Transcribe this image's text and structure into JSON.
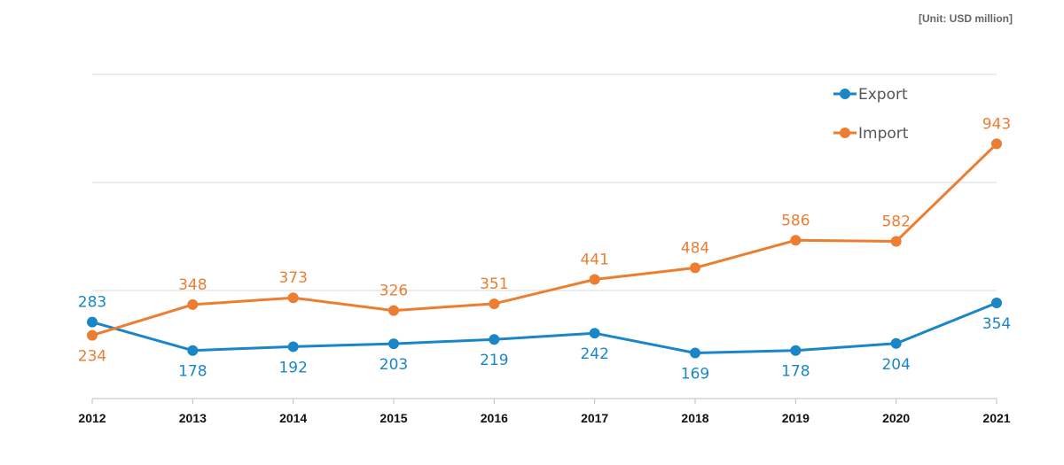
{
  "unit_note": "[Unit: USD million]",
  "chart_data": {
    "type": "line",
    "x": [
      "2012",
      "2013",
      "2014",
      "2015",
      "2016",
      "2017",
      "2018",
      "2019",
      "2020",
      "2021"
    ],
    "series": [
      {
        "name": "Export",
        "color": "#1a86c8",
        "values": [
          283,
          178,
          192,
          203,
          219,
          242,
          169,
          178,
          204,
          354
        ]
      },
      {
        "name": "Import",
        "color": "#ed7d31",
        "values": [
          234,
          348,
          373,
          326,
          351,
          441,
          484,
          586,
          582,
          943
        ]
      }
    ],
    "ylim": [
      0,
      1200
    ],
    "grid": true,
    "legend_position": "top-right"
  }
}
